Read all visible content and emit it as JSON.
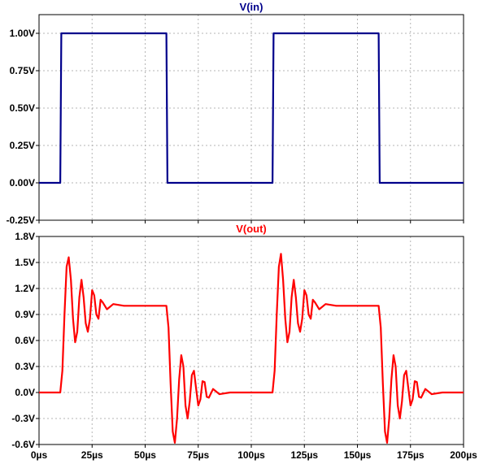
{
  "chart_data": [
    {
      "type": "line",
      "title": "V(in)",
      "title_color": "#00008b",
      "line_color": "#00008b",
      "grid": true,
      "xlim": [
        0,
        200
      ],
      "ylim": [
        -0.25,
        1.125
      ],
      "xticks": [
        0,
        25,
        50,
        75,
        100,
        125,
        150,
        175,
        200
      ],
      "yticks": [
        -0.25,
        0.0,
        0.25,
        0.5,
        0.75,
        1.0
      ],
      "ytick_labels": [
        "-0.25V",
        "0.00V",
        "0.25V",
        "0.50V",
        "0.75V",
        "1.00V"
      ],
      "series": [
        {
          "x": [
            0,
            10,
            10.5,
            60,
            60.5,
            110,
            110.5,
            160,
            160.5,
            200
          ],
          "y": [
            0,
            0,
            1.0,
            1.0,
            0,
            0,
            1.0,
            1.0,
            0,
            0
          ]
        }
      ]
    },
    {
      "type": "line",
      "title": "V(out)",
      "title_color": "#ff0000",
      "line_color": "#ff0000",
      "grid": true,
      "xlim": [
        0,
        200
      ],
      "ylim": [
        -0.6,
        1.8
      ],
      "xticks": [
        0,
        25,
        50,
        75,
        100,
        125,
        150,
        175,
        200
      ],
      "xtick_labels": [
        "0µs",
        "25µs",
        "50µs",
        "75µs",
        "100µs",
        "125µs",
        "150µs",
        "175µs",
        "200µs"
      ],
      "yticks": [
        -0.6,
        -0.3,
        0.0,
        0.3,
        0.6,
        0.9,
        1.2,
        1.5,
        1.8
      ],
      "ytick_labels": [
        "-0.6V",
        "-0.3V",
        "0.0V",
        "0.3V",
        "0.6V",
        "0.9V",
        "1.2V",
        "1.5V",
        "1.8V"
      ],
      "series": [
        {
          "x": [
            0,
            10,
            11,
            12,
            13,
            14,
            15,
            16,
            17,
            18,
            19,
            20,
            21,
            22,
            23,
            24,
            25,
            26,
            27,
            28,
            29,
            30,
            32,
            35,
            40,
            60,
            61,
            62,
            63,
            64,
            65,
            66,
            67,
            68,
            69,
            70,
            71,
            72,
            73,
            74,
            75,
            76,
            77,
            78,
            79,
            80,
            82,
            85,
            90,
            110,
            111,
            112,
            113,
            114,
            115,
            116,
            117,
            118,
            119,
            120,
            121,
            122,
            123,
            124,
            125,
            126,
            127,
            128,
            129,
            130,
            132,
            135,
            140,
            160,
            161,
            162,
            163,
            164,
            165,
            166,
            167,
            168,
            169,
            170,
            171,
            172,
            173,
            174,
            175,
            176,
            177,
            178,
            179,
            180,
            182,
            185,
            190,
            200
          ],
          "y": [
            0,
            0,
            0.25,
            0.9,
            1.45,
            1.56,
            1.3,
            0.85,
            0.58,
            0.7,
            1.1,
            1.3,
            1.1,
            0.8,
            0.7,
            0.85,
            1.18,
            1.12,
            0.9,
            0.85,
            1.07,
            1.04,
            0.96,
            1.02,
            1.0,
            1.0,
            0.75,
            0.1,
            -0.45,
            -0.58,
            -0.3,
            0.15,
            0.43,
            0.3,
            -0.15,
            -0.3,
            -0.1,
            0.2,
            0.25,
            0.05,
            -0.15,
            -0.08,
            0.13,
            0.12,
            -0.05,
            -0.06,
            0.04,
            -0.02,
            0.0,
            0.0,
            0.25,
            0.9,
            1.45,
            1.6,
            1.3,
            0.85,
            0.58,
            0.7,
            1.1,
            1.3,
            1.1,
            0.8,
            0.7,
            0.85,
            1.18,
            1.12,
            0.9,
            0.85,
            1.07,
            1.04,
            0.96,
            1.02,
            1.0,
            1.0,
            0.75,
            0.1,
            -0.45,
            -0.58,
            -0.3,
            0.15,
            0.43,
            0.3,
            -0.15,
            -0.3,
            -0.1,
            0.2,
            0.25,
            0.05,
            -0.15,
            -0.08,
            0.13,
            0.12,
            -0.05,
            -0.06,
            0.04,
            -0.02,
            0.0,
            0.0
          ]
        }
      ]
    }
  ]
}
